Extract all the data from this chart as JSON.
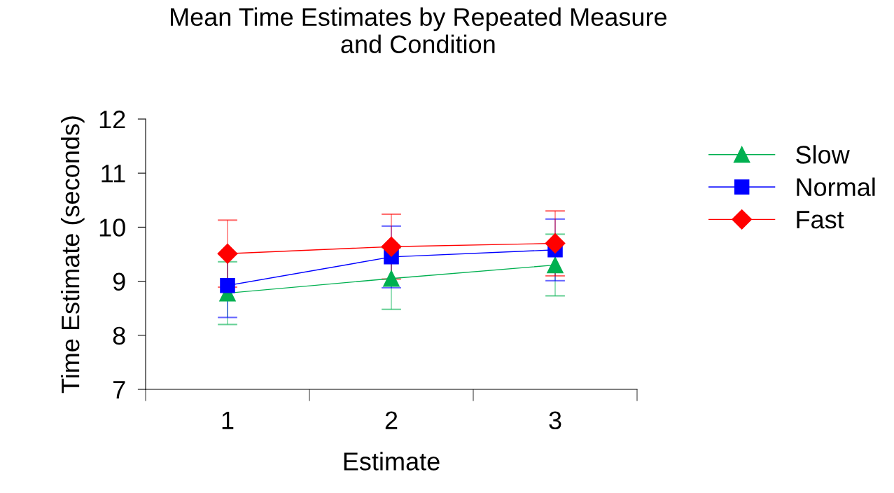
{
  "chart_data": {
    "type": "line",
    "title": "Mean Time Estimates by Repeated Measure\nand Condition",
    "xlabel": "Estimate",
    "ylabel": "Time Estimate (seconds)",
    "categories": [
      "1",
      "2",
      "3"
    ],
    "ylim": [
      7,
      12
    ],
    "yticks": [
      7,
      8,
      9,
      10,
      11,
      12
    ],
    "grid": false,
    "legend": "right",
    "series": [
      {
        "name": "Slow",
        "color": "#00b050",
        "marker": "triangle",
        "values": [
          8.78,
          9.05,
          9.3
        ],
        "errors": [
          0.58,
          0.57,
          0.57
        ]
      },
      {
        "name": "Normal",
        "color": "#0000ff",
        "marker": "square",
        "values": [
          8.92,
          9.45,
          9.58
        ],
        "errors": [
          0.59,
          0.57,
          0.57
        ]
      },
      {
        "name": "Fast",
        "color": "#ff0000",
        "marker": "diamond",
        "values": [
          9.51,
          9.64,
          9.7
        ],
        "errors": [
          0.62,
          0.6,
          0.6
        ]
      }
    ]
  }
}
